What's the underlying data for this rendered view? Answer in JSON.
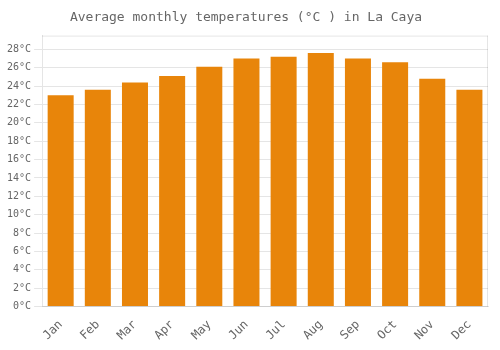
{
  "chart_data": {
    "type": "bar",
    "title": "Average monthly temperatures (°C ) in La Caya",
    "categories": [
      "Jan",
      "Feb",
      "Mar",
      "Apr",
      "May",
      "Jun",
      "Jul",
      "Aug",
      "Sep",
      "Oct",
      "Nov",
      "Dec"
    ],
    "values": [
      23.0,
      23.6,
      24.4,
      25.1,
      26.1,
      27.0,
      27.2,
      27.6,
      27.0,
      26.6,
      24.8,
      23.6
    ],
    "color": "#E8850A",
    "ylim": [
      0,
      29.5
    ],
    "yticks": [
      {
        "value": 0,
        "label": "0°C"
      },
      {
        "value": 2,
        "label": "2°C"
      },
      {
        "value": 4,
        "label": "4°C"
      },
      {
        "value": 6,
        "label": "6°C"
      },
      {
        "value": 8,
        "label": "8°C"
      },
      {
        "value": 10,
        "label": "10°C"
      },
      {
        "value": 12,
        "label": "12°C"
      },
      {
        "value": 14,
        "label": "14°C"
      },
      {
        "value": 16,
        "label": "16°C"
      },
      {
        "value": 18,
        "label": "18°C"
      },
      {
        "value": 20,
        "label": "20°C"
      },
      {
        "value": 22,
        "label": "22°C"
      },
      {
        "value": 24,
        "label": "24°C"
      },
      {
        "value": 26,
        "label": "26°C"
      },
      {
        "value": 28,
        "label": "28°C"
      }
    ],
    "grid": true
  }
}
